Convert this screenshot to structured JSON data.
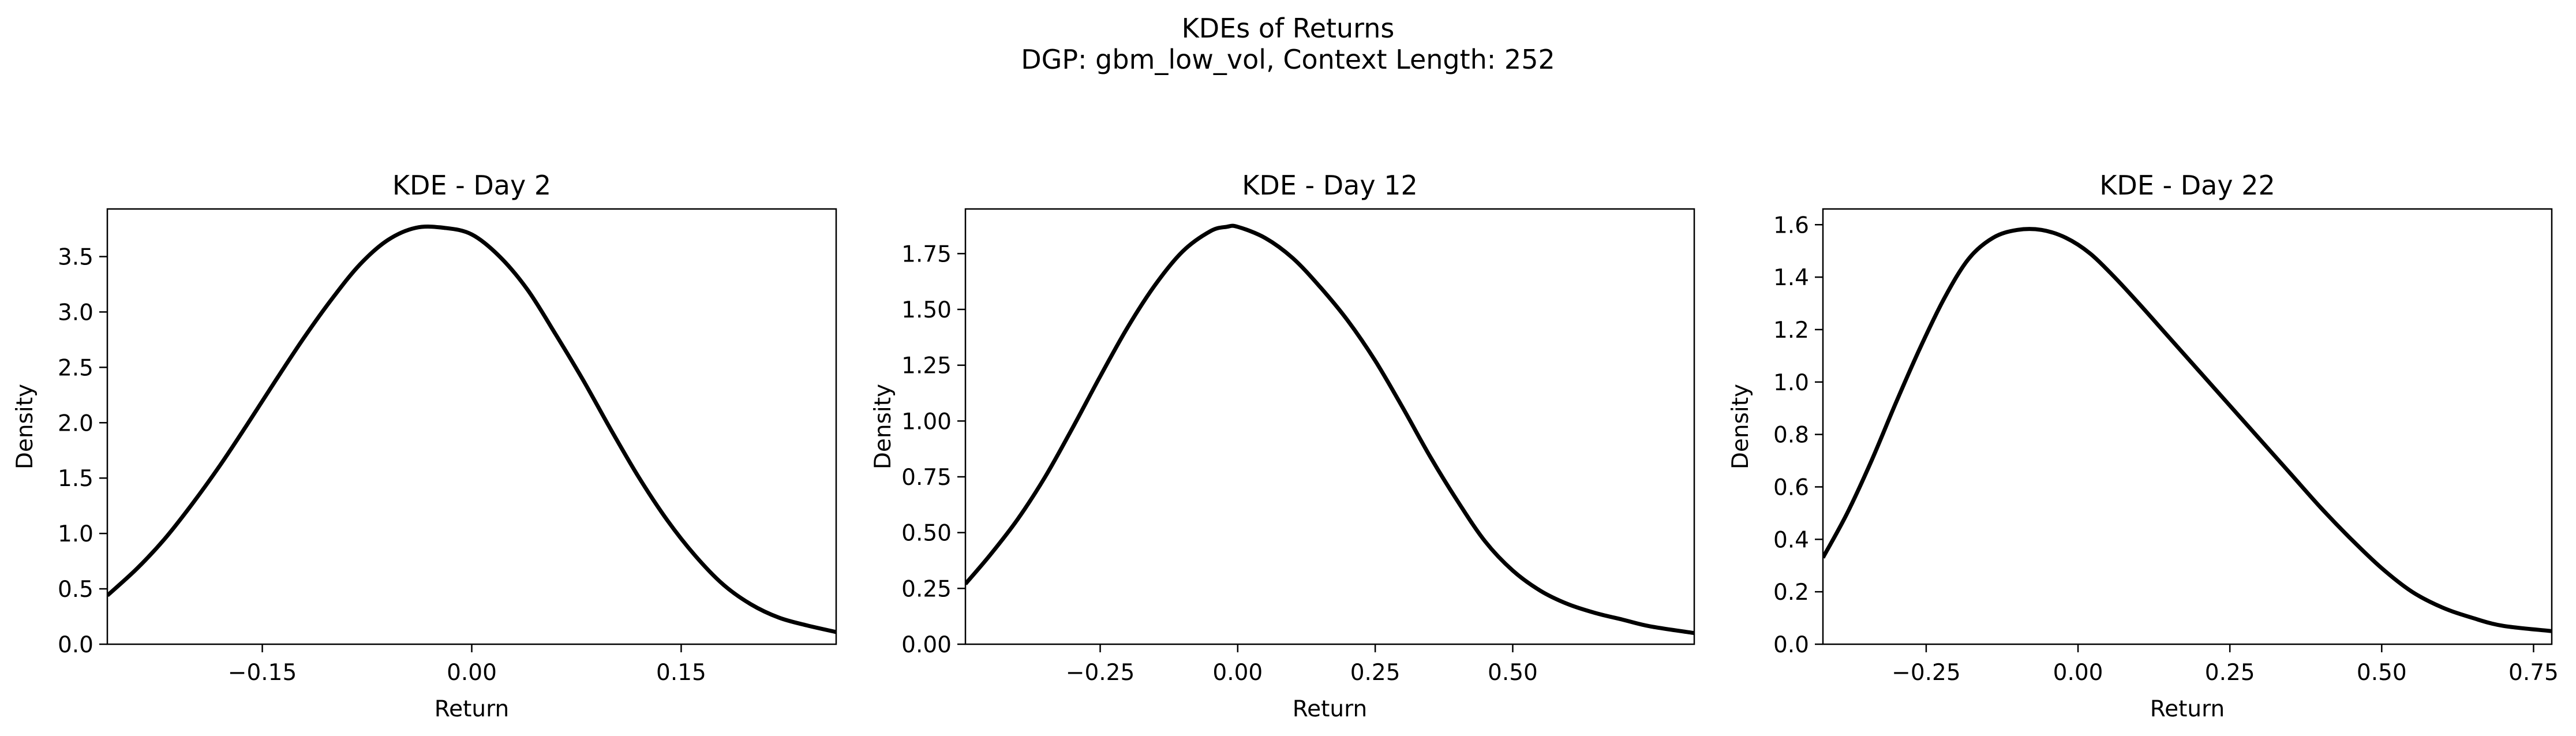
{
  "figure": {
    "title": "KDEs of Returns",
    "subtitle": "DGP: gbm_low_vol, Context Length: 252"
  },
  "chart_data": [
    {
      "type": "line",
      "title": "KDE - Day 2",
      "xlabel": "Return",
      "ylabel": "Density",
      "xlim": [
        -0.261,
        0.261
      ],
      "ylim": [
        0,
        3.93
      ],
      "xticks": [
        -0.15,
        0.0,
        0.15
      ],
      "xtick_labels": [
        "−0.15",
        "0.00",
        "0.15"
      ],
      "yticks": [
        0.0,
        0.5,
        1.0,
        1.5,
        2.0,
        2.5,
        3.0,
        3.5
      ],
      "ytick_labels": [
        "0.0",
        "0.5",
        "1.0",
        "1.5",
        "2.0",
        "2.5",
        "3.0",
        "3.5"
      ],
      "grid": false,
      "line_color": "#000000",
      "series": [
        {
          "x": [
            -0.261,
            -0.24,
            -0.22,
            -0.2,
            -0.18,
            -0.16,
            -0.14,
            -0.12,
            -0.1,
            -0.08,
            -0.06,
            -0.04,
            -0.02,
            0.0,
            0.02,
            0.04,
            0.06,
            0.08,
            0.1,
            0.12,
            0.14,
            0.16,
            0.18,
            0.2,
            0.22,
            0.24,
            0.261
          ],
          "y": [
            0.44,
            0.68,
            0.95,
            1.27,
            1.62,
            2.0,
            2.39,
            2.77,
            3.12,
            3.43,
            3.65,
            3.76,
            3.76,
            3.7,
            3.5,
            3.2,
            2.8,
            2.38,
            1.93,
            1.5,
            1.12,
            0.8,
            0.54,
            0.36,
            0.24,
            0.17,
            0.11
          ]
        }
      ]
    },
    {
      "type": "line",
      "title": "KDE - Day 12",
      "xlabel": "Return",
      "ylabel": "Density",
      "xlim": [
        -0.495,
        0.83
      ],
      "ylim": [
        0,
        1.95
      ],
      "xticks": [
        -0.25,
        0.0,
        0.25,
        0.5
      ],
      "xtick_labels": [
        "−0.25",
        "0.00",
        "0.25",
        "0.50"
      ],
      "yticks": [
        0.0,
        0.25,
        0.5,
        0.75,
        1.0,
        1.25,
        1.5,
        1.75
      ],
      "ytick_labels": [
        "0.00",
        "0.25",
        "0.50",
        "0.75",
        "1.00",
        "1.25",
        "1.50",
        "1.75"
      ],
      "grid": false,
      "line_color": "#000000",
      "series": [
        {
          "x": [
            -0.495,
            -0.45,
            -0.4,
            -0.35,
            -0.3,
            -0.25,
            -0.2,
            -0.15,
            -0.1,
            -0.05,
            -0.02,
            0.0,
            0.05,
            0.1,
            0.15,
            0.2,
            0.25,
            0.3,
            0.35,
            0.4,
            0.45,
            0.5,
            0.55,
            0.6,
            0.65,
            0.7,
            0.75,
            0.83
          ],
          "y": [
            0.27,
            0.4,
            0.56,
            0.75,
            0.97,
            1.2,
            1.42,
            1.61,
            1.76,
            1.85,
            1.87,
            1.87,
            1.82,
            1.73,
            1.6,
            1.45,
            1.27,
            1.06,
            0.84,
            0.64,
            0.46,
            0.33,
            0.24,
            0.18,
            0.14,
            0.11,
            0.08,
            0.05
          ]
        }
      ]
    },
    {
      "type": "line",
      "title": "KDE - Day 22",
      "xlabel": "Return",
      "ylabel": "Density",
      "xlim": [
        -0.42,
        0.78
      ],
      "ylim": [
        0,
        1.66
      ],
      "xticks": [
        -0.25,
        0.0,
        0.25,
        0.5,
        0.75
      ],
      "xtick_labels": [
        "−0.25",
        "0.00",
        "0.25",
        "0.50",
        "0.75"
      ],
      "yticks": [
        0.0,
        0.2,
        0.4,
        0.6,
        0.8,
        1.0,
        1.2,
        1.4,
        1.6
      ],
      "ytick_labels": [
        "0.0",
        "0.2",
        "0.4",
        "0.6",
        "0.8",
        "1.0",
        "1.2",
        "1.4",
        "1.6"
      ],
      "grid": false,
      "line_color": "#000000",
      "series": [
        {
          "x": [
            -0.42,
            -0.38,
            -0.34,
            -0.3,
            -0.26,
            -0.22,
            -0.18,
            -0.14,
            -0.1,
            -0.06,
            -0.02,
            0.02,
            0.06,
            0.1,
            0.15,
            0.2,
            0.25,
            0.3,
            0.35,
            0.4,
            0.45,
            0.5,
            0.55,
            0.6,
            0.65,
            0.7,
            0.78
          ],
          "y": [
            0.33,
            0.5,
            0.7,
            0.92,
            1.13,
            1.32,
            1.47,
            1.55,
            1.58,
            1.58,
            1.55,
            1.49,
            1.4,
            1.3,
            1.17,
            1.04,
            0.91,
            0.78,
            0.65,
            0.52,
            0.4,
            0.29,
            0.2,
            0.14,
            0.1,
            0.07,
            0.05
          ]
        }
      ]
    }
  ]
}
